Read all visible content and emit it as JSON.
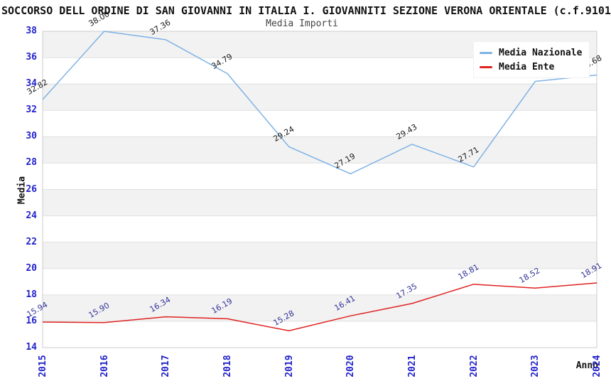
{
  "header": {
    "title": "SOCCORSO DELL ORDINE DI SAN GIOVANNI IN ITALIA I. GIOVANNITI SEZIONE VERONA ORIENTALE (c.f.9101",
    "subtitle": "Media Importi"
  },
  "chart_data": {
    "type": "line",
    "title": "SOCCORSO DELL ORDINE DI SAN GIOVANNI IN ITALIA I. GIOVANNITI SEZIONE VERONA ORIENTALE (c.f.9101",
    "subtitle": "Media Importi",
    "xlabel": "Anno",
    "ylabel": "Media",
    "x": [
      "2015",
      "2016",
      "2017",
      "2018",
      "2019",
      "2020",
      "2021",
      "2022",
      "2023",
      "2024"
    ],
    "ylim": [
      14,
      38
    ],
    "ytick_step": 2,
    "grid": "horizontal-bands",
    "legend_position": "top-right",
    "axis_color": "#2222CC",
    "band_color": "#F2F2F2",
    "grid_color": "#E0E0E0",
    "border_color": "#CCCCCC",
    "series": [
      {
        "name": "Media Nazionale",
        "color": "#7EB2E4",
        "label_color": "#1A1A1A",
        "values": [
          32.82,
          38.0,
          37.36,
          34.79,
          29.24,
          27.19,
          29.43,
          27.71,
          34.2,
          34.68
        ]
      },
      {
        "name": "Media Ente",
        "color": "#E02222",
        "label_color": "#333399",
        "values": [
          15.94,
          15.9,
          16.34,
          16.19,
          15.28,
          16.41,
          17.35,
          18.81,
          18.52,
          18.91
        ]
      }
    ]
  }
}
